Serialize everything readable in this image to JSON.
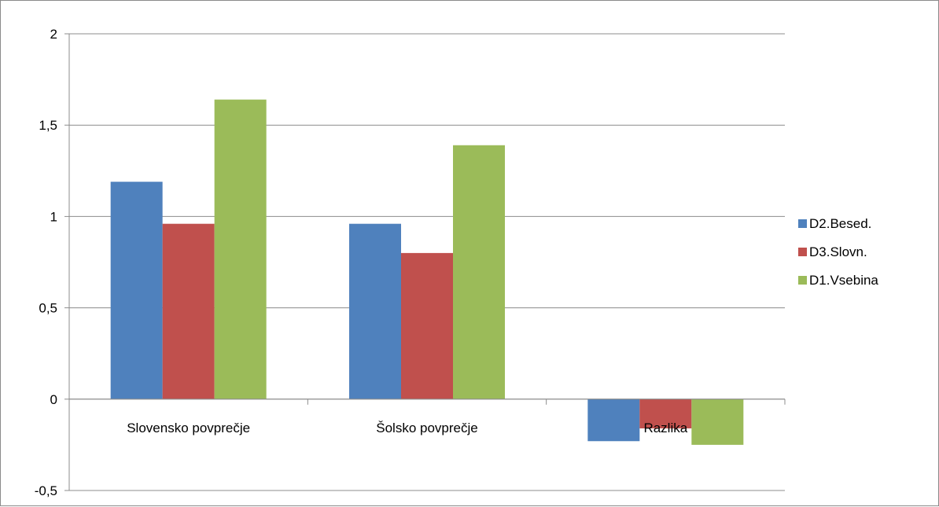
{
  "chart_data": {
    "type": "bar",
    "categories": [
      "Slovensko povprečje",
      "Šolsko povprečje",
      "Razlika"
    ],
    "series": [
      {
        "name": "D2.Besed.",
        "values": [
          1.19,
          0.96,
          -0.23
        ],
        "color": "#4F81BD"
      },
      {
        "name": "D3.Slovn.",
        "values": [
          0.96,
          0.8,
          -0.16
        ],
        "color": "#C0504D"
      },
      {
        "name": "D1.Vsebina",
        "values": [
          1.64,
          1.39,
          -0.25
        ],
        "color": "#9BBB59"
      }
    ],
    "ylim": [
      -0.5,
      2
    ],
    "yticks": [
      -0.5,
      0,
      0.5,
      1,
      1.5,
      2
    ],
    "ytick_labels": [
      "-0,5",
      "0",
      "0,5",
      "1",
      "1,5",
      "2"
    ],
    "grid": true,
    "legend_position": "right",
    "title": "",
    "xlabel": "",
    "ylabel": ""
  }
}
